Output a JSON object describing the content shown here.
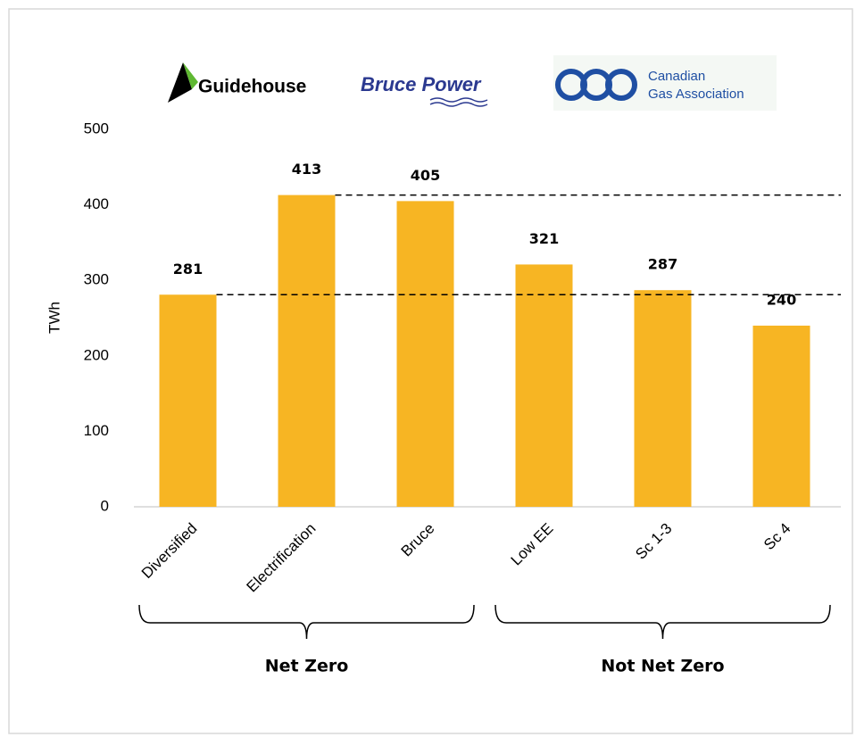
{
  "chart_data": {
    "type": "bar",
    "logos": [
      "Guidehouse",
      "Bruce Power",
      "Canadian",
      "Gas Association"
    ],
    "y_label": "TWh",
    "categories": [
      "Diversified",
      "Electrification",
      "Bruce",
      "Low EE",
      "Sc 1-3",
      "Sc 4"
    ],
    "values": [
      281,
      413,
      405,
      321,
      287,
      240
    ],
    "color": "#f7b523",
    "ylim": [
      0,
      500
    ],
    "yticks": [
      0,
      100,
      200,
      300,
      400,
      500
    ],
    "grid": false,
    "groups": [
      "Net Zero",
      "Not Net Zero"
    ]
  }
}
